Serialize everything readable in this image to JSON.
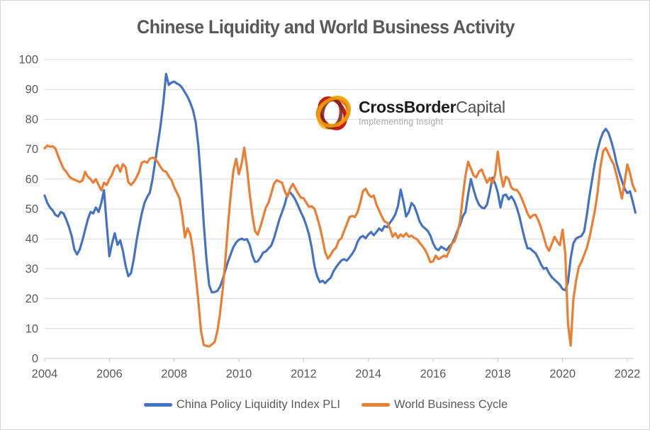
{
  "title": "Chinese Liquidity and World Business Activity",
  "logo": {
    "brand_bold": "CrossBorder",
    "brand_light": "Capital",
    "tagline": "Implementing Insight",
    "icon": "swirl-ellipses-logo",
    "icon_colors": [
      "#F2A105",
      "#E36C0A",
      "#C00000",
      "#7E2020",
      "#F6B73C"
    ]
  },
  "colors": {
    "series_blue": "#4472C4",
    "series_orange": "#ED7D31",
    "gridline": "#D9D9D9",
    "axis": "#C6C6C6",
    "tick_text": "#595959",
    "title_text": "#595959",
    "background": "#FFFFFF"
  },
  "chart_data": {
    "type": "line",
    "title": "Chinese Liquidity and World Business Activity",
    "xlabel": "",
    "ylabel": "",
    "x_start_year": 2004,
    "x_step": "monthly",
    "x_ticks": [
      2004,
      2006,
      2008,
      2010,
      2012,
      2014,
      2016,
      2018,
      2020,
      2022
    ],
    "y_ticks": [
      0,
      10,
      20,
      30,
      40,
      50,
      60,
      70,
      80,
      90,
      100
    ],
    "ylim": [
      0,
      100
    ],
    "grid": "horizontal",
    "legend_position": "bottom",
    "series": [
      {
        "name": "China Policy Liquidity Index PLI",
        "color": "#4472C4",
        "values": [
          54.5,
          52,
          50.5,
          49.5,
          48,
          47.5,
          49,
          48.5,
          46.5,
          44,
          41,
          36.5,
          34.8,
          36.5,
          39.5,
          43,
          46.5,
          49,
          48.5,
          50.5,
          49,
          52,
          56.3,
          45,
          34.2,
          38.5,
          41.9,
          38,
          39.5,
          36,
          31,
          27.5,
          28.5,
          33,
          39,
          44,
          48.5,
          52,
          54,
          55.5,
          60,
          66,
          72,
          78,
          85.5,
          95.2,
          91.5,
          92.3,
          92.6,
          92,
          91.5,
          90.5,
          89,
          87.5,
          85.5,
          83,
          79,
          71,
          59,
          45,
          33,
          24.5,
          22.1,
          22.2,
          22.6,
          24,
          26.5,
          29.5,
          32.5,
          35,
          37.3,
          38.8,
          39.7,
          40.1,
          39.7,
          39.9,
          38,
          34.5,
          32.3,
          32.5,
          33.8,
          35.4,
          35.8,
          36.8,
          37.8,
          40.2,
          43.3,
          46.5,
          48.9,
          51.5,
          55,
          55.5,
          54.5,
          53,
          51,
          48.9,
          47,
          44.5,
          41.5,
          37,
          31,
          27.5,
          25.5,
          26,
          25.2,
          26.2,
          27,
          29,
          30.5,
          31.7,
          32.8,
          33.2,
          32.7,
          33.8,
          35,
          36.5,
          39,
          40.5,
          41,
          40.2,
          41.5,
          42.3,
          41.2,
          42.3,
          43.5,
          42.7,
          44.3,
          43.9,
          45.4,
          46.6,
          48.2,
          51,
          56.5,
          52.5,
          47.5,
          49,
          52,
          51,
          48.6,
          45.8,
          44.3,
          43.5,
          42.7,
          41.1,
          38.5,
          36.8,
          36.2,
          37.4,
          36.8,
          36.2,
          37.5,
          38.4,
          40.3,
          42.7,
          44.7,
          47.5,
          49,
          55,
          60,
          56.5,
          53.5,
          51.5,
          50.5,
          50.2,
          51.5,
          55.5,
          60.5,
          58.5,
          55.5,
          50.5,
          54.5,
          54.8,
          53.2,
          54.2,
          52.8,
          50.5,
          47.5,
          43.5,
          39.8,
          36.8,
          36.8,
          35.9,
          35.2,
          33.5,
          31.5,
          30,
          30.3,
          28.5,
          27.2,
          26.3,
          25.5,
          24.6,
          23.2,
          22.8,
          25.5,
          33.5,
          38.5,
          40.1,
          40.6,
          41,
          42.5,
          48,
          54.5,
          60,
          65.5,
          69.8,
          73.2,
          75.6,
          76.8,
          75.5,
          72.8,
          69.5,
          65.3,
          62.2,
          59.4,
          56.8,
          55.3,
          55.9,
          52.5,
          48.8
        ]
      },
      {
        "name": "World Business Cycle",
        "color": "#ED7D31",
        "values": [
          70.3,
          71.2,
          70.8,
          71,
          70.2,
          67.8,
          65.5,
          63.5,
          62.5,
          61,
          60.2,
          59.8,
          59.4,
          59,
          59.5,
          62.4,
          60.8,
          60,
          58.8,
          60,
          58,
          56.2,
          58.8,
          58,
          60,
          61.5,
          64,
          64.7,
          62.5,
          65,
          64,
          59,
          58,
          59,
          60.5,
          62.5,
          65.5,
          65.9,
          65.5,
          66.8,
          67.2,
          66.8,
          65.6,
          64,
          62.8,
          62.5,
          60.9,
          59.7,
          57.3,
          55.5,
          53.5,
          48,
          40.5,
          43.5,
          41.5,
          36,
          28,
          19,
          9,
          4.5,
          4.2,
          4,
          4.7,
          5.5,
          9,
          15,
          23,
          33,
          45,
          55,
          63,
          66.8,
          61.6,
          65,
          70.5,
          64,
          55.2,
          48,
          42.6,
          41.4,
          44.1,
          47.3,
          50.5,
          52.1,
          55.2,
          58.4,
          59.6,
          59.2,
          58.8,
          56,
          54,
          56.8,
          58.4,
          56.8,
          55.2,
          53.8,
          53.6,
          52.1,
          50.7,
          50.9,
          50.1,
          47.3,
          44.1,
          40,
          35.5,
          33.4,
          34.6,
          36.2,
          37,
          39.4,
          40.2,
          42.6,
          44.9,
          47.3,
          47.7,
          47.3,
          48.9,
          52.1,
          56,
          56.8,
          55,
          54,
          54.5,
          51.5,
          49.5,
          47.5,
          45.8,
          45.4,
          43.5,
          40.7,
          41.9,
          40.3,
          41.5,
          40.7,
          41.9,
          40.7,
          41.1,
          40.3,
          39.9,
          38.7,
          37.6,
          36.4,
          34.5,
          32.2,
          32.5,
          34.4,
          33.2,
          33.8,
          34.4,
          34,
          36,
          38.4,
          39.2,
          42,
          46,
          54,
          61.2,
          65.8,
          63.5,
          61.2,
          60.6,
          62.5,
          63.2,
          61,
          58.8,
          60.4,
          58.6,
          61.5,
          69.2,
          62,
          57.5,
          60.8,
          60,
          57.2,
          56.4,
          56.4,
          55.2,
          53.2,
          50.9,
          48.5,
          47,
          47.9,
          48.1,
          46.2,
          43.8,
          40.8,
          37.6,
          36,
          38.3,
          40.7,
          39.1,
          37.9,
          43.1,
          35,
          11.6,
          4.3,
          19.7,
          26,
          30.5,
          32.3,
          34.6,
          37,
          40.5,
          45,
          49.5,
          55.5,
          63.8,
          69.3,
          70.4,
          68.5,
          66.5,
          64.8,
          61.4,
          57.5,
          53.5,
          59,
          64.9,
          62,
          58,
          56
        ]
      }
    ]
  }
}
